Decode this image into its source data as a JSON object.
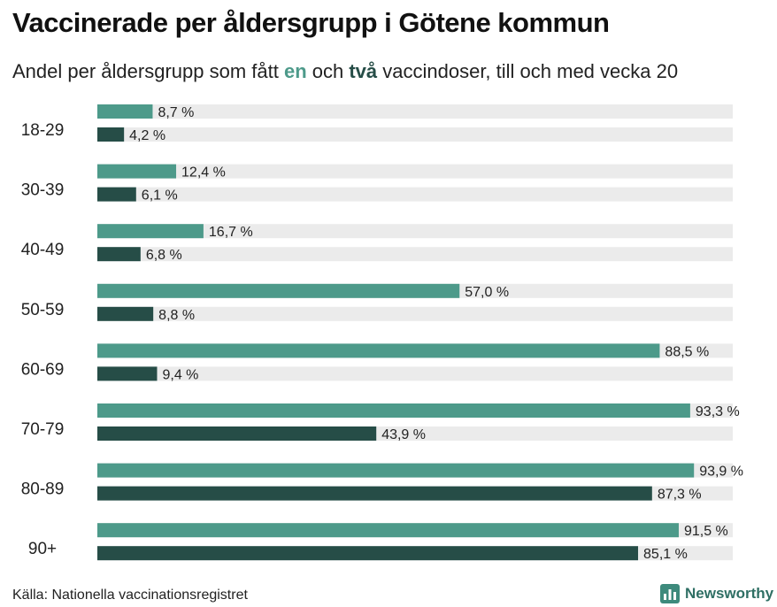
{
  "title": "Vaccinerade per åldersgrupp i Götene kommun",
  "subtitle": {
    "before": "Andel per åldersgrupp som fått ",
    "hl1": "en",
    "middle": " och ",
    "hl2": "två",
    "after": " vaccindoser, till och med vecka 20"
  },
  "source": "Källa: Nationella vaccinationsregistret",
  "brand": {
    "name": "Newsworthy",
    "icon": "bar-chart-logo-icon"
  },
  "colors": {
    "one_dose": "#4d9a8a",
    "two_doses": "#264d47",
    "track": "#ebebeb"
  },
  "chart_data": {
    "type": "bar",
    "orientation": "horizontal",
    "categories": [
      "18-29",
      "30-39",
      "40-49",
      "50-59",
      "60-69",
      "70-79",
      "80-89",
      "90+"
    ],
    "series": [
      {
        "key": "one_dose",
        "values": [
          8.7,
          12.4,
          16.7,
          57.0,
          88.5,
          93.3,
          93.9,
          91.5
        ],
        "labels": [
          "8,7 %",
          "12,4 %",
          "16,7 %",
          "57,0 %",
          "88,5 %",
          "93,3 %",
          "93,9 %",
          "91,5 %"
        ]
      },
      {
        "key": "two_doses",
        "values": [
          4.2,
          6.1,
          6.8,
          8.8,
          9.4,
          43.9,
          87.3,
          85.1
        ],
        "labels": [
          "4,2 %",
          "6,1 %",
          "6,8 %",
          "8,8 %",
          "9,4 %",
          "43,9 %",
          "87,3 %",
          "85,1 %"
        ]
      }
    ],
    "xlim": [
      0,
      100
    ],
    "grid": false,
    "legend": "none"
  }
}
